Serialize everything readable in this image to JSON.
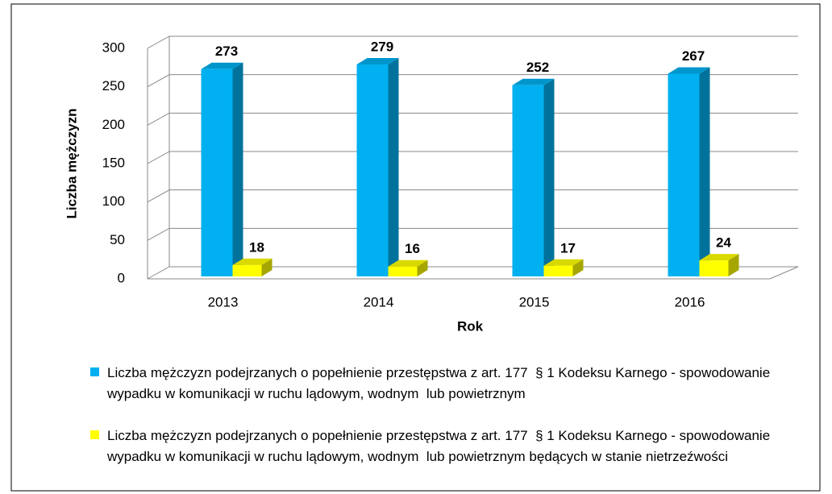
{
  "chart_data": {
    "type": "bar3d",
    "y_label": "Liczba mężczyzn",
    "x_label": "Rok",
    "categories": [
      "2013",
      "2014",
      "2015",
      "2016"
    ],
    "series": [
      {
        "name": "Liczba mężczyzn podejrzanych o popełnienie przestępstwa z art. 177  § 1 Kodeksu Karnego - spowodowanie wypadku w komunikacji w ruchu lądowym, wodnym  lub powietrznym",
        "color": "#00b0f0",
        "values": [
          273,
          279,
          252,
          267
        ]
      },
      {
        "name": "Liczba mężczyzn podejrzanych o popełnienie przestępstwa z art. 177  § 1 Kodeksu Karnego - spowodowanie wypadku w komunikacji w ruchu lądowym, wodnym  lub powietrznym będących w stanie nietrzeźwości",
        "color": "#ffff00",
        "values": [
          18,
          16,
          17,
          24
        ]
      }
    ],
    "ylim": [
      0,
      300
    ],
    "yticks": [
      0,
      50,
      100,
      150,
      200,
      250,
      300
    ],
    "grid": true,
    "legend": "bottom"
  }
}
